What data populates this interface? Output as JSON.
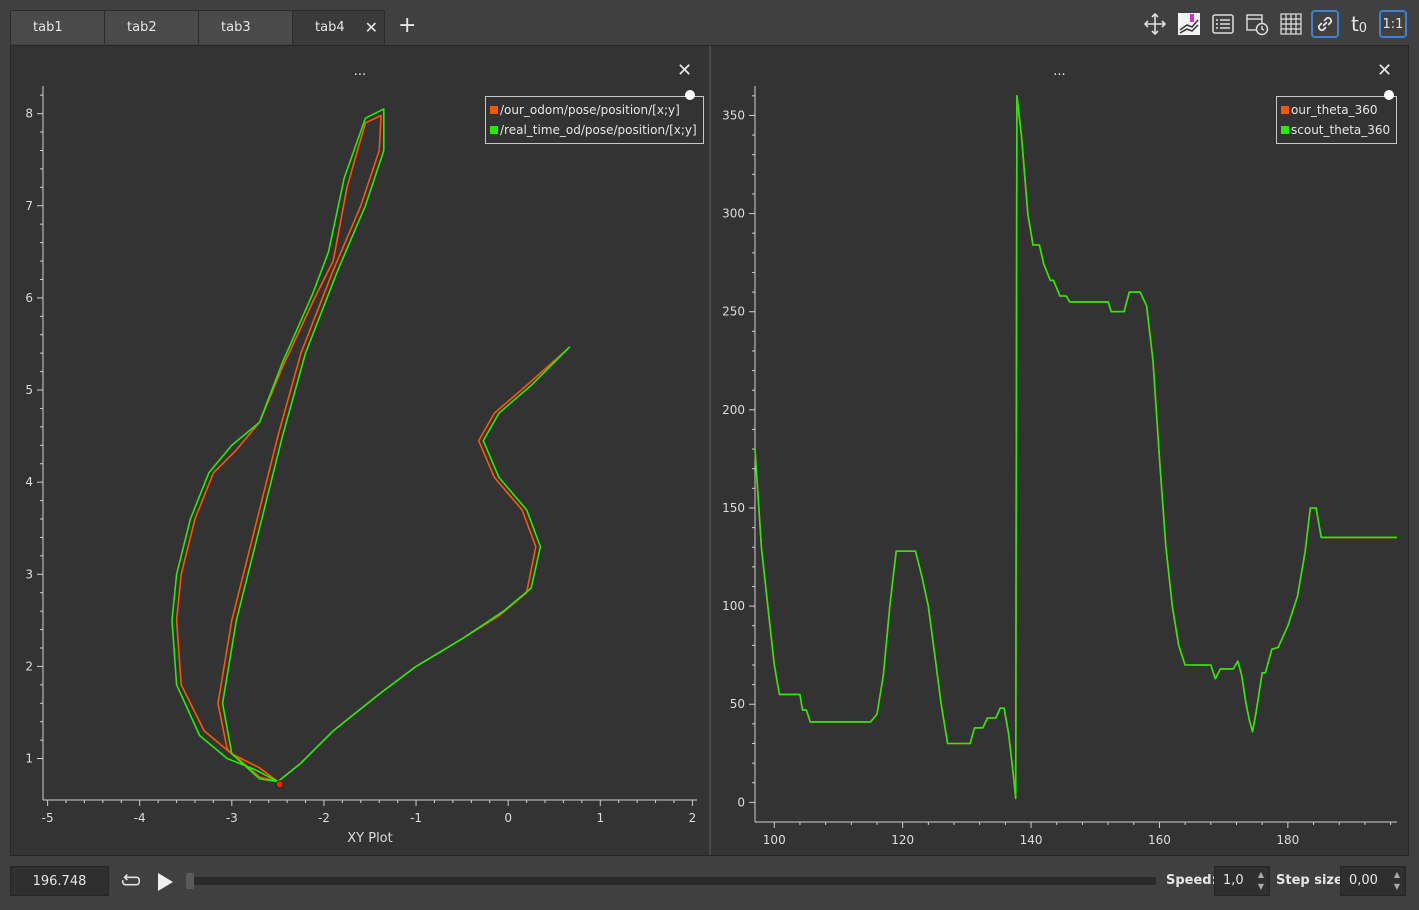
{
  "tabs": [
    {
      "label": "tab1"
    },
    {
      "label": "tab2"
    },
    {
      "label": "tab3"
    },
    {
      "label": "tab4",
      "active": true,
      "close": "✕"
    }
  ],
  "tab_add": "+",
  "toolbar": {
    "icons": [
      "move-icon",
      "xy-plot-icon",
      "list-icon",
      "calendar-time-icon",
      "grid-icon",
      "link-icon",
      "time-zero-icon",
      "ratio-one-icon"
    ],
    "t0_label": "t",
    "t0_sub": "0",
    "ratio_label": "1:1"
  },
  "left_panel": {
    "title": "...",
    "close": "✕",
    "xlabel": "XY Plot",
    "legend": [
      {
        "name": "/our_odom/pose/position/[x;y]",
        "color": "#ff5500"
      },
      {
        "name": "/real_time_od/pose/position/[x;y]",
        "color": "#22ee00"
      }
    ]
  },
  "right_panel": {
    "title": "...",
    "close": "✕",
    "legend": [
      {
        "name": "our_theta_360",
        "color": "#ff5500"
      },
      {
        "name": "scout_theta_360",
        "color": "#22ee00"
      }
    ]
  },
  "chart_data": [
    {
      "type": "scatter",
      "title": "",
      "xlabel": "XY Plot",
      "ylabel": "",
      "xlim": [
        -5.05,
        2.05
      ],
      "ylim": [
        0.55,
        8.3
      ],
      "xticks": [
        -5,
        -4,
        -3,
        -2,
        -1,
        0,
        1,
        2
      ],
      "yticks": [
        1,
        2,
        3,
        4,
        5,
        6,
        7,
        8
      ],
      "series": [
        {
          "name": "/our_odom/pose/position/[x;y]",
          "color": "#ff5500",
          "points": [
            [
              -2.5,
              0.75
            ],
            [
              -2.7,
              0.9
            ],
            [
              -3.0,
              1.05
            ],
            [
              -3.3,
              1.3
            ],
            [
              -3.55,
              1.8
            ],
            [
              -3.6,
              2.5
            ],
            [
              -3.55,
              3.0
            ],
            [
              -3.4,
              3.6
            ],
            [
              -3.2,
              4.1
            ],
            [
              -2.95,
              4.35
            ],
            [
              -2.7,
              4.65
            ],
            [
              -2.45,
              5.25
            ],
            [
              -2.1,
              6.0
            ],
            [
              -1.9,
              6.4
            ],
            [
              -1.75,
              7.2
            ],
            [
              -1.55,
              7.9
            ],
            [
              -1.38,
              7.98
            ],
            [
              -1.4,
              7.6
            ],
            [
              -1.6,
              7.0
            ],
            [
              -1.9,
              6.3
            ],
            [
              -2.25,
              5.4
            ],
            [
              -2.5,
              4.5
            ],
            [
              -2.8,
              3.3
            ],
            [
              -3.0,
              2.5
            ],
            [
              -3.15,
              1.6
            ],
            [
              -3.05,
              1.1
            ],
            [
              -2.7,
              0.8
            ],
            [
              -2.5,
              0.75
            ],
            [
              -2.25,
              0.95
            ],
            [
              -1.9,
              1.3
            ],
            [
              -1.4,
              1.7
            ],
            [
              -1.0,
              2.0
            ],
            [
              -0.5,
              2.3
            ],
            [
              -0.1,
              2.55
            ],
            [
              0.2,
              2.8
            ],
            [
              0.3,
              3.3
            ],
            [
              0.15,
              3.7
            ],
            [
              -0.15,
              4.05
            ],
            [
              -0.32,
              4.45
            ],
            [
              -0.15,
              4.75
            ],
            [
              0.2,
              5.05
            ],
            [
              0.65,
              5.45
            ]
          ]
        },
        {
          "name": "/real_time_od/pose/position/[x;y]",
          "color": "#22ee00",
          "points": [
            [
              -2.5,
              0.75
            ],
            [
              -2.75,
              0.88
            ],
            [
              -3.05,
              1.0
            ],
            [
              -3.35,
              1.25
            ],
            [
              -3.6,
              1.8
            ],
            [
              -3.65,
              2.5
            ],
            [
              -3.6,
              3.0
            ],
            [
              -3.45,
              3.6
            ],
            [
              -3.25,
              4.1
            ],
            [
              -3.0,
              4.4
            ],
            [
              -2.7,
              4.65
            ],
            [
              -2.45,
              5.3
            ],
            [
              -2.12,
              6.05
            ],
            [
              -1.95,
              6.5
            ],
            [
              -1.78,
              7.3
            ],
            [
              -1.55,
              7.95
            ],
            [
              -1.35,
              8.05
            ],
            [
              -1.35,
              7.6
            ],
            [
              -1.55,
              7.0
            ],
            [
              -1.85,
              6.3
            ],
            [
              -2.2,
              5.4
            ],
            [
              -2.45,
              4.5
            ],
            [
              -2.75,
              3.3
            ],
            [
              -2.95,
              2.5
            ],
            [
              -3.1,
              1.6
            ],
            [
              -3.0,
              1.05
            ],
            [
              -2.7,
              0.78
            ],
            [
              -2.5,
              0.75
            ],
            [
              -2.25,
              0.95
            ],
            [
              -1.9,
              1.3
            ],
            [
              -1.4,
              1.7
            ],
            [
              -1.0,
              2.0
            ],
            [
              -0.5,
              2.3
            ],
            [
              -0.05,
              2.6
            ],
            [
              0.25,
              2.85
            ],
            [
              0.35,
              3.3
            ],
            [
              0.2,
              3.7
            ],
            [
              -0.1,
              4.05
            ],
            [
              -0.27,
              4.45
            ],
            [
              -0.1,
              4.75
            ],
            [
              0.25,
              5.05
            ],
            [
              0.67,
              5.47
            ]
          ]
        }
      ],
      "marker": {
        "x": -2.48,
        "y": 0.72,
        "color": "#ff2200"
      }
    },
    {
      "type": "line",
      "title": "",
      "xlabel": "",
      "ylabel": "",
      "xlim": [
        97,
        197
      ],
      "ylim": [
        -10,
        365
      ],
      "xticks": [
        100,
        120,
        140,
        160,
        180
      ],
      "yticks": [
        0,
        50,
        100,
        150,
        200,
        250,
        300,
        350
      ],
      "series": [
        {
          "name": "our_theta_360",
          "color": "#ff5500",
          "points": [
            [
              97,
              180
            ],
            [
              98,
              130
            ],
            [
              99,
              100
            ],
            [
              100,
              70
            ],
            [
              100.8,
              55
            ],
            [
              104,
              55
            ],
            [
              104.4,
              47
            ],
            [
              105,
              47
            ],
            [
              105.6,
              41
            ],
            [
              115,
              41
            ],
            [
              116,
              45
            ],
            [
              117,
              65
            ],
            [
              118,
              100
            ],
            [
              119,
              128
            ],
            [
              122,
              128
            ],
            [
              123,
              115
            ],
            [
              124,
              100
            ],
            [
              125,
              75
            ],
            [
              126,
              50
            ],
            [
              127,
              30
            ],
            [
              130.5,
              30
            ],
            [
              131.2,
              38
            ],
            [
              132.5,
              38
            ],
            [
              133.2,
              43
            ],
            [
              134.5,
              43
            ],
            [
              135.2,
              48
            ],
            [
              135.8,
              48
            ],
            [
              136.5,
              35
            ],
            [
              137.2,
              15
            ],
            [
              137.6,
              2
            ],
            [
              137.8,
              360
            ],
            [
              138.5,
              340
            ],
            [
              139.5,
              300
            ],
            [
              140.3,
              284
            ],
            [
              141.3,
              284
            ],
            [
              142,
              274
            ],
            [
              143,
              266
            ],
            [
              143.5,
              266
            ],
            [
              144.5,
              258
            ],
            [
              145.5,
              258
            ],
            [
              146,
              255
            ],
            [
              152,
              255
            ],
            [
              152.5,
              250
            ],
            [
              154.5,
              250
            ],
            [
              155.3,
              260
            ],
            [
              157,
              260
            ],
            [
              158,
              253
            ],
            [
              159,
              225
            ],
            [
              160,
              175
            ],
            [
              161,
              130
            ],
            [
              162,
              100
            ],
            [
              163,
              80
            ],
            [
              164,
              70
            ],
            [
              168,
              70
            ],
            [
              168.7,
              63
            ],
            [
              169.5,
              68
            ],
            [
              171.5,
              68
            ],
            [
              172.2,
              72
            ],
            [
              172.8,
              65
            ],
            [
              173.5,
              50
            ],
            [
              174,
              42
            ],
            [
              174.5,
              36
            ],
            [
              175,
              45
            ],
            [
              176,
              66
            ],
            [
              176.5,
              66
            ],
            [
              177.5,
              78
            ],
            [
              178.5,
              79
            ],
            [
              180,
              90
            ],
            [
              181.5,
              105
            ],
            [
              182.7,
              128
            ],
            [
              183.5,
              150
            ],
            [
              184.4,
              150
            ],
            [
              185.2,
              135
            ],
            [
              197,
              135
            ]
          ]
        },
        {
          "name": "scout_theta_360",
          "color": "#22ee00",
          "points": [
            [
              97,
              180
            ],
            [
              98,
              130
            ],
            [
              99,
              100
            ],
            [
              100,
              70
            ],
            [
              100.8,
              55
            ],
            [
              104,
              55
            ],
            [
              104.4,
              47
            ],
            [
              105,
              47
            ],
            [
              105.6,
              41
            ],
            [
              115,
              41
            ],
            [
              116,
              45
            ],
            [
              117,
              65
            ],
            [
              118,
              100
            ],
            [
              119,
              128
            ],
            [
              122,
              128
            ],
            [
              123,
              115
            ],
            [
              124,
              100
            ],
            [
              125,
              75
            ],
            [
              126,
              50
            ],
            [
              127,
              30
            ],
            [
              130.5,
              30
            ],
            [
              131.2,
              38
            ],
            [
              132.5,
              38
            ],
            [
              133.2,
              43
            ],
            [
              134.5,
              43
            ],
            [
              135.2,
              48
            ],
            [
              135.8,
              48
            ],
            [
              136.5,
              35
            ],
            [
              137.2,
              15
            ],
            [
              137.6,
              2
            ],
            [
              137.8,
              360
            ],
            [
              138.5,
              340
            ],
            [
              139.5,
              300
            ],
            [
              140.3,
              284
            ],
            [
              141.3,
              284
            ],
            [
              142,
              274
            ],
            [
              143,
              266
            ],
            [
              143.5,
              266
            ],
            [
              144.5,
              258
            ],
            [
              145.5,
              258
            ],
            [
              146,
              255
            ],
            [
              152,
              255
            ],
            [
              152.5,
              250
            ],
            [
              154.5,
              250
            ],
            [
              155.3,
              260
            ],
            [
              157,
              260
            ],
            [
              158,
              253
            ],
            [
              159,
              225
            ],
            [
              160,
              175
            ],
            [
              161,
              130
            ],
            [
              162,
              100
            ],
            [
              163,
              80
            ],
            [
              164,
              70
            ],
            [
              168,
              70
            ],
            [
              168.7,
              63
            ],
            [
              169.5,
              68
            ],
            [
              171.5,
              68
            ],
            [
              172.2,
              72
            ],
            [
              172.8,
              65
            ],
            [
              173.5,
              50
            ],
            [
              174,
              42
            ],
            [
              174.5,
              36
            ],
            [
              175,
              45
            ],
            [
              176,
              66
            ],
            [
              176.5,
              66
            ],
            [
              177.5,
              78
            ],
            [
              178.5,
              79
            ],
            [
              180,
              90
            ],
            [
              181.5,
              105
            ],
            [
              182.7,
              128
            ],
            [
              183.5,
              150
            ],
            [
              184.4,
              150
            ],
            [
              185.2,
              135
            ],
            [
              197,
              135
            ]
          ]
        }
      ]
    }
  ],
  "playback": {
    "time": "196.748",
    "speed_label": "Speed:",
    "speed_value": "1,0",
    "step_label": "Step size:",
    "step_value": "0,00",
    "progress": 0
  }
}
